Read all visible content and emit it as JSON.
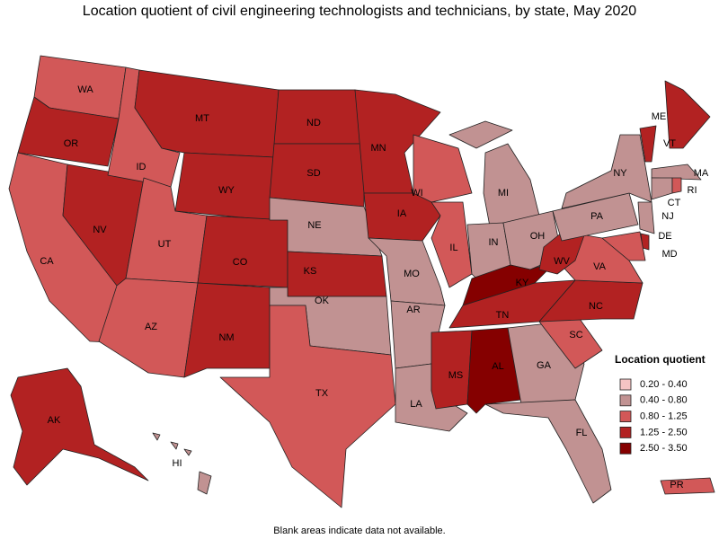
{
  "title": "Location quotient of civil engineering technologists and technicians, by state, May 2020",
  "footnote": "Blank areas indicate data not available.",
  "legend": {
    "title": "Location quotient",
    "items": [
      {
        "label": "0.20 - 0.40",
        "color": "#f5c4c4"
      },
      {
        "label": "0.40 - 0.80",
        "color": "#c19292"
      },
      {
        "label": "0.80 - 1.25",
        "color": "#d25858"
      },
      {
        "label": "1.25 - 2.50",
        "color": "#b22222"
      },
      {
        "label": "2.50 - 3.50",
        "color": "#850000"
      }
    ]
  },
  "states": [
    {
      "abbr": "WA",
      "level": 2
    },
    {
      "abbr": "OR",
      "level": 3
    },
    {
      "abbr": "CA",
      "level": 2
    },
    {
      "abbr": "NV",
      "level": 3
    },
    {
      "abbr": "ID",
      "level": 2
    },
    {
      "abbr": "MT",
      "level": 3
    },
    {
      "abbr": "WY",
      "level": 3
    },
    {
      "abbr": "UT",
      "level": 2
    },
    {
      "abbr": "AZ",
      "level": 2
    },
    {
      "abbr": "CO",
      "level": 3
    },
    {
      "abbr": "NM",
      "level": 3
    },
    {
      "abbr": "ND",
      "level": 3
    },
    {
      "abbr": "SD",
      "level": 3
    },
    {
      "abbr": "NE",
      "level": 1
    },
    {
      "abbr": "KS",
      "level": 3
    },
    {
      "abbr": "OK",
      "level": 1
    },
    {
      "abbr": "TX",
      "level": 2
    },
    {
      "abbr": "MN",
      "level": 3
    },
    {
      "abbr": "IA",
      "level": 3
    },
    {
      "abbr": "MO",
      "level": 1
    },
    {
      "abbr": "AR",
      "level": 1
    },
    {
      "abbr": "LA",
      "level": 1
    },
    {
      "abbr": "WI",
      "level": 2
    },
    {
      "abbr": "IL",
      "level": 2
    },
    {
      "abbr": "MI",
      "level": 1
    },
    {
      "abbr": "IN",
      "level": 1
    },
    {
      "abbr": "OH",
      "level": 1
    },
    {
      "abbr": "KY",
      "level": 4
    },
    {
      "abbr": "TN",
      "level": 3
    },
    {
      "abbr": "MS",
      "level": 3
    },
    {
      "abbr": "AL",
      "level": 4
    },
    {
      "abbr": "GA",
      "level": 1
    },
    {
      "abbr": "FL",
      "level": 1
    },
    {
      "abbr": "SC",
      "level": 2
    },
    {
      "abbr": "NC",
      "level": 3
    },
    {
      "abbr": "VA",
      "level": 2
    },
    {
      "abbr": "WV",
      "level": 3
    },
    {
      "abbr": "PA",
      "level": 1
    },
    {
      "abbr": "NY",
      "level": 1
    },
    {
      "abbr": "VT",
      "level": 3
    },
    {
      "abbr": "ME",
      "level": 3
    },
    {
      "abbr": "MA",
      "level": 1
    },
    {
      "abbr": "CT",
      "level": 1
    },
    {
      "abbr": "RI",
      "level": 2
    },
    {
      "abbr": "NJ",
      "level": 1
    },
    {
      "abbr": "DE",
      "level": 3
    },
    {
      "abbr": "MD",
      "level": 2
    },
    {
      "abbr": "AK",
      "level": 3
    },
    {
      "abbr": "HI",
      "level": 1
    },
    {
      "abbr": "PR",
      "level": 2
    }
  ]
}
